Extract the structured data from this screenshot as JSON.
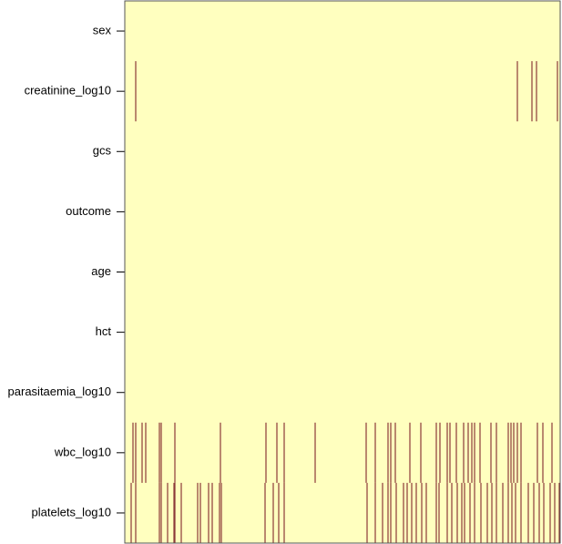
{
  "chart_data": {
    "type": "missingness",
    "background_color": "#ffffbf",
    "missing_color": "#8b3a3a",
    "xlim": [
      0,
      478
    ],
    "series": [
      {
        "name": "sex",
        "values": []
      },
      {
        "name": "creatinine_log10",
        "values": [
          12,
          431,
          447,
          452,
          475
        ]
      },
      {
        "name": "gcs",
        "values": []
      },
      {
        "name": "outcome",
        "values": []
      },
      {
        "name": "age",
        "values": []
      },
      {
        "name": "hct",
        "values": []
      },
      {
        "name": "parasitaemia_log10",
        "values": []
      },
      {
        "name": "wbc_log10",
        "values": [
          9,
          12,
          19,
          23,
          38,
          40,
          55,
          105,
          155,
          167,
          175,
          209,
          265,
          275,
          289,
          292,
          297,
          313,
          325,
          342,
          346,
          354,
          357,
          364,
          372,
          377,
          381,
          384,
          390,
          402,
          408,
          421,
          424,
          427,
          431,
          435,
          453,
          459,
          469
        ]
      },
      {
        "name": "platelets_log10",
        "values": [
          7,
          12,
          38,
          40,
          47,
          54,
          55,
          62,
          80,
          83,
          92,
          96,
          104,
          106,
          154,
          163,
          169,
          175,
          266,
          275,
          283,
          289,
          292,
          298,
          306,
          310,
          315,
          320,
          326,
          331,
          342,
          345,
          354,
          359,
          365,
          370,
          373,
          379,
          384,
          391,
          398,
          403,
          408,
          415,
          421,
          425,
          429,
          435,
          443,
          449,
          455,
          460,
          467,
          472,
          477
        ]
      }
    ]
  }
}
